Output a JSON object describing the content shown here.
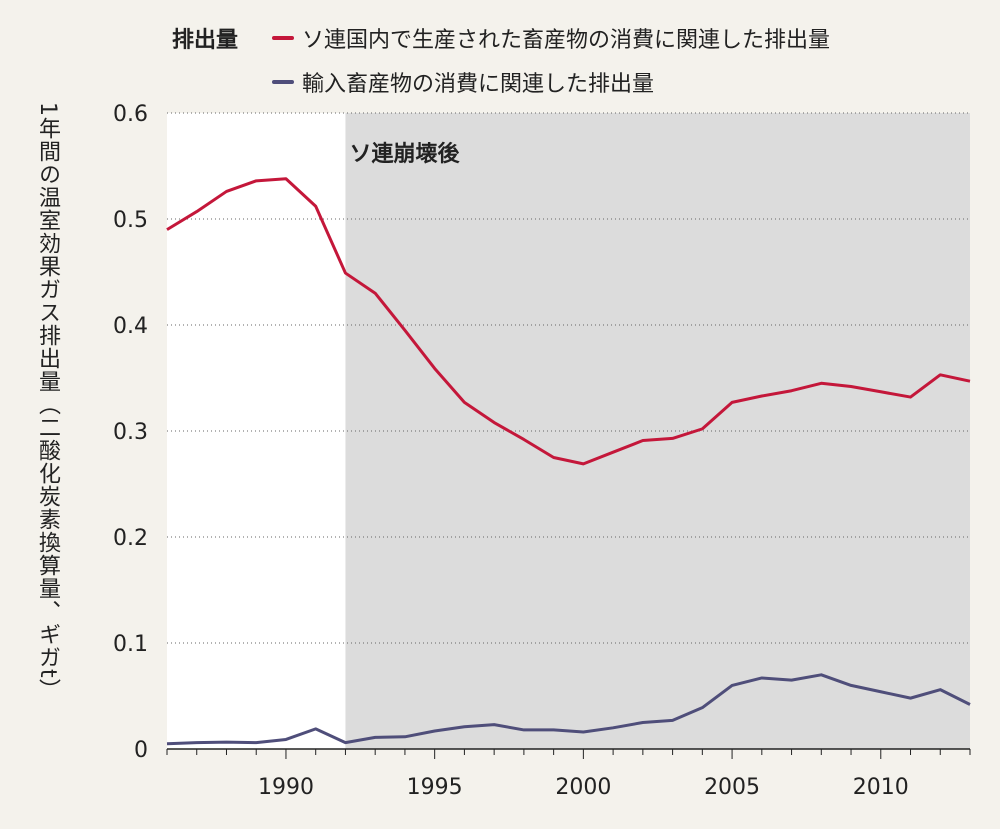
{
  "chart_data": {
    "type": "line",
    "legend_title": "排出量",
    "ylabel": "1年間の温室効果ガス排出量（二酸化炭素換算量、ギガt）",
    "xlim": [
      1986,
      2013
    ],
    "ylim": [
      0,
      0.6
    ],
    "yticks": [
      "0",
      "0.1",
      "0.2",
      "0.3",
      "0.4",
      "0.5",
      "0.6"
    ],
    "xticks": [
      "1990",
      "1995",
      "2000",
      "2005",
      "2010"
    ],
    "grid": "horizontal-dotted",
    "shaded_region": {
      "label": "ソ連崩壊後",
      "x_start": 1992,
      "x_end": 2013,
      "color": "#dcdcdc"
    },
    "x": [
      1986,
      1987,
      1988,
      1989,
      1990,
      1991,
      1992,
      1993,
      1994,
      1995,
      1996,
      1997,
      1998,
      1999,
      2000,
      2001,
      2002,
      2003,
      2004,
      2005,
      2006,
      2007,
      2008,
      2009,
      2010,
      2011,
      2012,
      2013
    ],
    "series": [
      {
        "name": "ソ連国内で生産された畜産物の消費に関連した排出量",
        "color": "#c4173a",
        "values": [
          0.49,
          0.507,
          0.526,
          0.536,
          0.538,
          0.512,
          0.449,
          0.43,
          0.395,
          0.359,
          0.327,
          0.308,
          0.292,
          0.275,
          0.269,
          0.28,
          0.291,
          0.293,
          0.302,
          0.327,
          0.333,
          0.338,
          0.345,
          0.342,
          0.337,
          0.332,
          0.353,
          0.347
        ]
      },
      {
        "name": "輸入畜産物の消費に関連した排出量",
        "color": "#4f4e7a",
        "values": [
          0.005,
          0.006,
          0.0065,
          0.006,
          0.009,
          0.019,
          0.006,
          0.011,
          0.0115,
          0.017,
          0.021,
          0.023,
          0.018,
          0.018,
          0.016,
          0.02,
          0.025,
          0.027,
          0.039,
          0.06,
          0.067,
          0.065,
          0.07,
          0.06,
          0.054,
          0.048,
          0.056,
          0.042
        ]
      }
    ]
  }
}
